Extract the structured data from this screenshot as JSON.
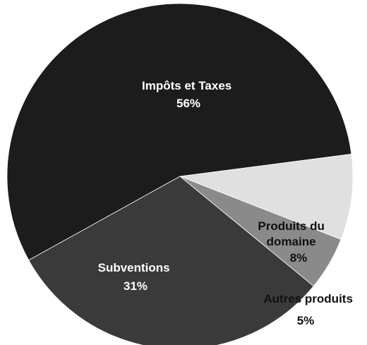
{
  "chart_data": {
    "type": "pie",
    "title": "",
    "slices": [
      {
        "label": "Impôts et Taxes",
        "value": 56,
        "value_label": "56%",
        "color": "#1c1c1c",
        "text_color": "#ffffff"
      },
      {
        "label": "Produits du domaine",
        "value": 8,
        "value_label": "8%",
        "color": "#e0e0e0",
        "text_color": "#111111"
      },
      {
        "label": "Autres produits",
        "value": 5,
        "value_label": "5%",
        "color": "#8a8a8a",
        "text_color": "#111111"
      },
      {
        "label": "Subventions",
        "value": 31,
        "value_label": "31%",
        "color": "#3a3a3a",
        "text_color": "#ffffff"
      }
    ]
  }
}
